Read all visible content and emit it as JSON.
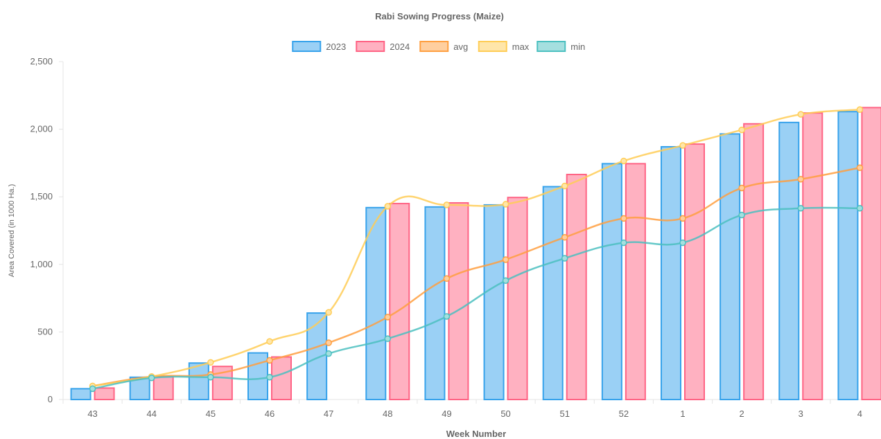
{
  "chart_data": {
    "type": "bar",
    "title": "Rabi Sowing Progress (Maize)",
    "xlabel": "Week Number",
    "ylabel": "Area Covered (in 1000 Ha.)",
    "ylim": [
      0,
      2500
    ],
    "yticks": [
      "0",
      "500",
      "1,000",
      "1,500",
      "2,000",
      "2,500"
    ],
    "ytick_values": [
      0,
      500,
      1000,
      1500,
      2000,
      2500
    ],
    "grid": false,
    "legend_position": "top",
    "categories": [
      "43",
      "44",
      "45",
      "46",
      "47",
      "48",
      "49",
      "50",
      "51",
      "52",
      "1",
      "2",
      "3",
      "4"
    ],
    "bar_series": [
      {
        "name": "2023",
        "border": "#36a2eb",
        "fill": "#9ad0f5",
        "values": [
          80,
          165,
          270,
          345,
          640,
          1420,
          1425,
          1440,
          1575,
          1745,
          1870,
          1965,
          2050,
          2130
        ]
      },
      {
        "name": "2024",
        "border": "#ff6384",
        "fill": "#ffb1c1",
        "values": [
          85,
          170,
          245,
          315,
          null,
          1450,
          1455,
          1495,
          1665,
          1745,
          1890,
          2040,
          2120,
          2160
        ]
      }
    ],
    "line_series": [
      {
        "name": "avg",
        "border": "#ff9f40",
        "fill": "#ffcf9f",
        "values": [
          100,
          170,
          185,
          290,
          420,
          610,
          895,
          1035,
          1200,
          1340,
          1340,
          1565,
          1630,
          1715
        ]
      },
      {
        "name": "max",
        "border": "#ffcd56",
        "fill": "#ffe6aa",
        "values": [
          100,
          170,
          275,
          430,
          645,
          1430,
          1440,
          1445,
          1580,
          1765,
          1880,
          1995,
          2110,
          2145
        ]
      },
      {
        "name": "min",
        "border": "#4bc0c0",
        "fill": "#a5dfdf",
        "values": [
          80,
          160,
          165,
          165,
          340,
          450,
          615,
          880,
          1045,
          1160,
          1160,
          1365,
          1415,
          1415
        ]
      }
    ]
  }
}
